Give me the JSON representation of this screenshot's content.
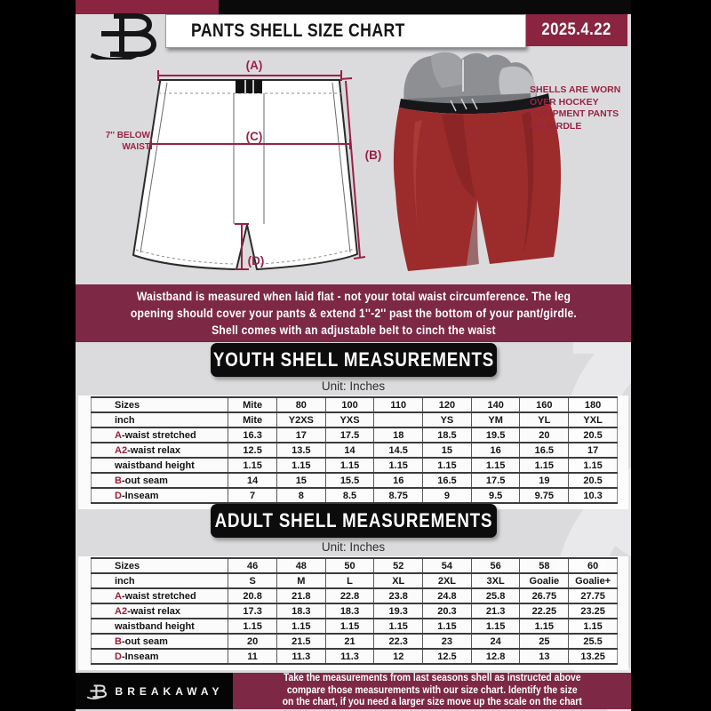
{
  "header": {
    "title": "PANTS SHELL SIZE CHART",
    "date": "2025.4.22",
    "logo": "breakaway-b-logo"
  },
  "diagram": {
    "label_a": "(A)",
    "label_b": "(B)",
    "label_c": "(C)",
    "label_d": "(D)",
    "waist_note_lines": [
      "7'' BELOW",
      "WAIST"
    ],
    "side_note_lines": [
      "SHELLS ARE WORN",
      "OVER HOCKEY",
      "EQUIPMENT PANTS",
      "OR GIRDLE"
    ]
  },
  "banner": {
    "lines": [
      "Waistband is measured when laid flat - not your total waist circumference. The leg",
      "opening should cover your pants & extend 1''-2'' past the bottom of your pant/girdle.",
      "Shell comes with an adjustable belt to cinch the waist"
    ]
  },
  "youth": {
    "heading": "YOUTH SHELL MEASUREMENTS",
    "unit": "Unit: Inches",
    "table": [
      {
        "accent": "",
        "label": "Sizes",
        "cells": [
          "Mite",
          "80",
          "100",
          "110",
          "120",
          "140",
          "160",
          "180"
        ]
      },
      {
        "accent": "",
        "label": "inch",
        "cells": [
          "Mite",
          "Y2XS",
          "YXS",
          "",
          "YS",
          "YM",
          "YL",
          "YXL"
        ]
      },
      {
        "accent": "A",
        "label": "-waist stretched",
        "cells": [
          "16.3",
          "17",
          "17.5",
          "18",
          "18.5",
          "19.5",
          "20",
          "20.5"
        ]
      },
      {
        "accent": "A2",
        "label": "-waist relax",
        "cells": [
          "12.5",
          "13.5",
          "14",
          "14.5",
          "15",
          "16",
          "16.5",
          "17"
        ]
      },
      {
        "accent": "",
        "label": "waistband height",
        "cells": [
          "1.15",
          "1.15",
          "1.15",
          "1.15",
          "1.15",
          "1.15",
          "1.15",
          "1.15"
        ]
      },
      {
        "accent": "B",
        "label": "-out seam",
        "cells": [
          "14",
          "15",
          "15.5",
          "16",
          "16.5",
          "17.5",
          "19",
          "20.5"
        ]
      },
      {
        "accent": "D",
        "label": "-Inseam",
        "cells": [
          "7",
          "8",
          "8.5",
          "8.75",
          "9",
          "9.5",
          "9.75",
          "10.3"
        ]
      }
    ]
  },
  "adult": {
    "heading": "ADULT SHELL MEASUREMENTS",
    "unit": "Unit: Inches",
    "table": [
      {
        "accent": "",
        "label": "Sizes",
        "cells": [
          "46",
          "48",
          "50",
          "52",
          "54",
          "56",
          "58",
          "60"
        ]
      },
      {
        "accent": "",
        "label": "inch",
        "cells": [
          "S",
          "M",
          "L",
          "XL",
          "2XL",
          "3XL",
          "Goalie",
          "Goalie+"
        ]
      },
      {
        "accent": "A",
        "label": "-waist stretched",
        "cells": [
          "20.8",
          "21.8",
          "22.8",
          "23.8",
          "24.8",
          "25.8",
          "26.75",
          "27.75"
        ]
      },
      {
        "accent": "A2",
        "label": "-waist relax",
        "cells": [
          "17.3",
          "18.3",
          "18.3",
          "19.3",
          "20.3",
          "21.3",
          "22.25",
          "23.25"
        ]
      },
      {
        "accent": "",
        "label": "waistband height",
        "cells": [
          "1.15",
          "1.15",
          "1.15",
          "1.15",
          "1.15",
          "1.15",
          "1.15",
          "1.15"
        ]
      },
      {
        "accent": "B",
        "label": "-out seam",
        "cells": [
          "20",
          "21.5",
          "21",
          "22.3",
          "23",
          "24",
          "25",
          "25.5"
        ]
      },
      {
        "accent": "D",
        "label": "-Inseam",
        "cells": [
          "11",
          "11.3",
          "11.3",
          "12",
          "12.5",
          "12.8",
          "13",
          "13.25"
        ]
      }
    ]
  },
  "footer": {
    "brand": "BREAKAWAY",
    "lines": [
      "Take the measurements from last seasons shell as instructed above",
      "compare those measurements  with our size chart. Identify the size",
      "on the chart, if you need a larger size move up the scale on the chart"
    ]
  },
  "colors": {
    "maroon_banner": "#7D2945",
    "maroon_bright": "#8A2440",
    "accent_red": "#9B1D37",
    "diagram_line": "#9B2144",
    "paper_gray": "#DBDBDE",
    "badge_black": "#0C0C0C",
    "shell_red": "#9C2B2B"
  }
}
